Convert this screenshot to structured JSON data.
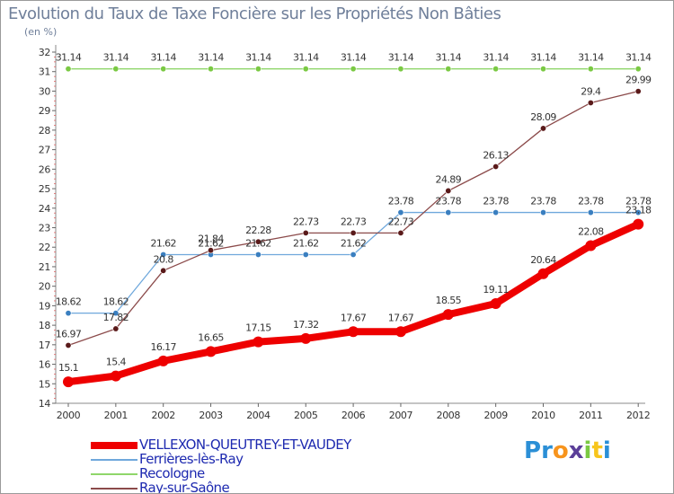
{
  "chart_data": {
    "type": "line",
    "title": "Evolution du Taux de Taxe Foncière sur les Propriétés Non Bâties",
    "subtitle": "(en %)",
    "xlabel": "",
    "ylabel": "",
    "ylim": [
      14,
      32
    ],
    "yticks": [
      "14",
      "15",
      "16",
      "17",
      "18",
      "19",
      "20",
      "21",
      "22",
      "23",
      "24",
      "25",
      "26",
      "27",
      "28",
      "29",
      "30",
      "31",
      "32"
    ],
    "categories": [
      "2000",
      "2001",
      "2002",
      "2003",
      "2004",
      "2005",
      "2006",
      "2007",
      "2008",
      "2009",
      "2010",
      "2011",
      "2012"
    ],
    "grid": false,
    "legend_position": "bottom-left",
    "series": [
      {
        "name": "VELLEXON-QUEUTREY-ET-VAUDEY",
        "color": "#ee0000",
        "values": [
          15.1,
          15.4,
          16.17,
          16.65,
          17.15,
          17.32,
          17.67,
          17.67,
          18.55,
          19.11,
          20.64,
          22.08,
          23.18
        ],
        "labels": [
          "15.1",
          "15.4",
          "16.17",
          "16.65",
          "17.15",
          "17.32",
          "17.67",
          "17.67",
          "18.55",
          "19.11",
          "20.64",
          "22.08",
          "23.18"
        ]
      },
      {
        "name": "Ferrières-lès-Ray",
        "color": "#6fa8dc",
        "marker_color": "#3a7fc0",
        "values": [
          18.62,
          18.62,
          21.62,
          21.62,
          21.62,
          21.62,
          21.62,
          23.78,
          23.78,
          23.78,
          23.78,
          23.78,
          23.78
        ],
        "labels": [
          "18.62",
          "18.62",
          "21.62",
          "21.62",
          "21.62",
          "21.62",
          "21.62",
          "23.78",
          "23.78",
          "23.78",
          "23.78",
          "23.78",
          "23.78"
        ]
      },
      {
        "name": "Recologne",
        "color": "#8fd66a",
        "marker_color": "#7ac943",
        "values": [
          31.14,
          31.14,
          31.14,
          31.14,
          31.14,
          31.14,
          31.14,
          31.14,
          31.14,
          31.14,
          31.14,
          31.14,
          31.14
        ],
        "labels": [
          "31.14",
          "31.14",
          "31.14",
          "31.14",
          "31.14",
          "31.14",
          "31.14",
          "31.14",
          "31.14",
          "31.14",
          "31.14",
          "31.14",
          "31.14"
        ]
      },
      {
        "name": "Ray-sur-Saône",
        "color": "#8b4a4a",
        "marker_color": "#5a1a1a",
        "values": [
          16.97,
          17.82,
          20.8,
          21.84,
          22.28,
          22.73,
          22.73,
          22.73,
          24.89,
          26.13,
          28.09,
          29.4,
          29.99
        ],
        "labels": [
          "16.97",
          "17.82",
          "20.8",
          "21.84",
          "22.28",
          "22.73",
          "22.73",
          "22.73",
          "24.89",
          "26.13",
          "28.09",
          "29.4",
          "29.99"
        ]
      }
    ]
  },
  "logo": {
    "letters": [
      "P",
      "r",
      "o",
      "x",
      "i",
      "t",
      "i"
    ],
    "colors": [
      "#2b8fd6",
      "#2b8fd6",
      "#f7941d",
      "#5b3f99",
      "#7ac943",
      "#f7c51d",
      "#2b8fd6"
    ]
  }
}
